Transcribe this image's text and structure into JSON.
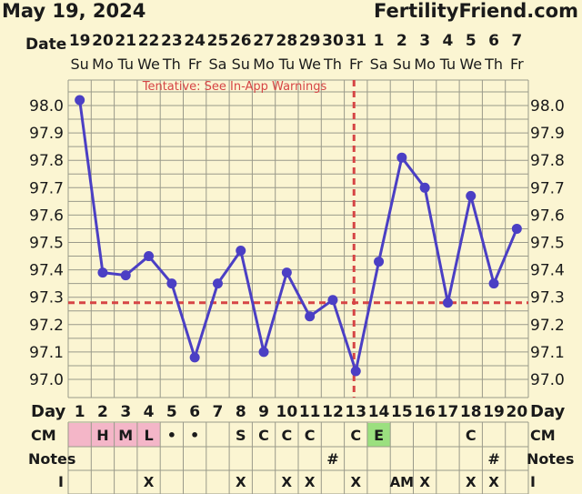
{
  "header": {
    "chart_start_date": "May 19, 2024",
    "site": "FertilityFriend.com"
  },
  "labels": {
    "date": "Date",
    "day": "Day",
    "cm": "CM",
    "notes": "Notes",
    "intercourse": "I",
    "tentative": "Tentative: See In-App Warnings"
  },
  "colors": {
    "line": "#4b3fc4",
    "marker": "#4b3fc4",
    "coverline": "#d64545",
    "ovulation_line": "#d64545",
    "tentative_text": "#d64545",
    "grid": "#9a9a8a",
    "background": "#fbf5d2",
    "cm_pink": "#f4b6c8",
    "cm_green": "#9be07f"
  },
  "chart_data": {
    "type": "line",
    "x": [
      1,
      2,
      3,
      4,
      5,
      6,
      7,
      8,
      9,
      10,
      11,
      12,
      13,
      14,
      15,
      16,
      17,
      18,
      19,
      20
    ],
    "dates": [
      "19",
      "20",
      "21",
      "22",
      "23",
      "24",
      "25",
      "26",
      "27",
      "28",
      "29",
      "30",
      "31",
      "1",
      "2",
      "3",
      "4",
      "5",
      "6",
      "7"
    ],
    "weekdays": [
      "Su",
      "Mo",
      "Tu",
      "We",
      "Th",
      "Fr",
      "Sa",
      "Su",
      "Mo",
      "Tu",
      "We",
      "Th",
      "Fr",
      "Sa",
      "Su",
      "Mo",
      "Tu",
      "We",
      "Th",
      "Fr"
    ],
    "series": [
      {
        "values": [
          98.02,
          97.39,
          97.38,
          97.45,
          97.35,
          97.08,
          97.35,
          97.47,
          97.1,
          97.39,
          97.23,
          97.29,
          97.03,
          97.43,
          97.81,
          97.7,
          97.28,
          97.67,
          97.35,
          97.55
        ]
      }
    ],
    "ylim": [
      96.95,
      98.05
    ],
    "yticks": [
      "98.0",
      "97.9",
      "97.8",
      "97.7",
      "97.6",
      "97.5",
      "97.4",
      "97.3",
      "97.2",
      "97.1",
      "97.0"
    ],
    "coverline": 97.28,
    "ovulation_day": 13,
    "cm": [
      "",
      "H",
      "M",
      "L",
      "•",
      "•",
      "",
      "S",
      "C",
      "C",
      "C",
      "",
      "C",
      "E",
      "",
      "",
      "",
      "C",
      "",
      ""
    ],
    "cm_highlight": [
      "pink",
      "pink",
      "pink",
      "pink",
      "",
      "",
      "",
      "",
      "",
      "",
      "",
      "",
      "",
      "green",
      "",
      "",
      "",
      "",
      "",
      ""
    ],
    "notes": [
      "",
      "",
      "",
      "",
      "",
      "",
      "",
      "",
      "",
      "",
      "",
      "#",
      "",
      "",
      "",
      "",
      "",
      "",
      "#",
      ""
    ],
    "intercourse": [
      "",
      "",
      "",
      "X",
      "",
      "",
      "",
      "X",
      "",
      "X",
      "X",
      "",
      "X",
      "",
      "AM",
      "X",
      "",
      "X",
      "X",
      ""
    ],
    "grid": true
  }
}
